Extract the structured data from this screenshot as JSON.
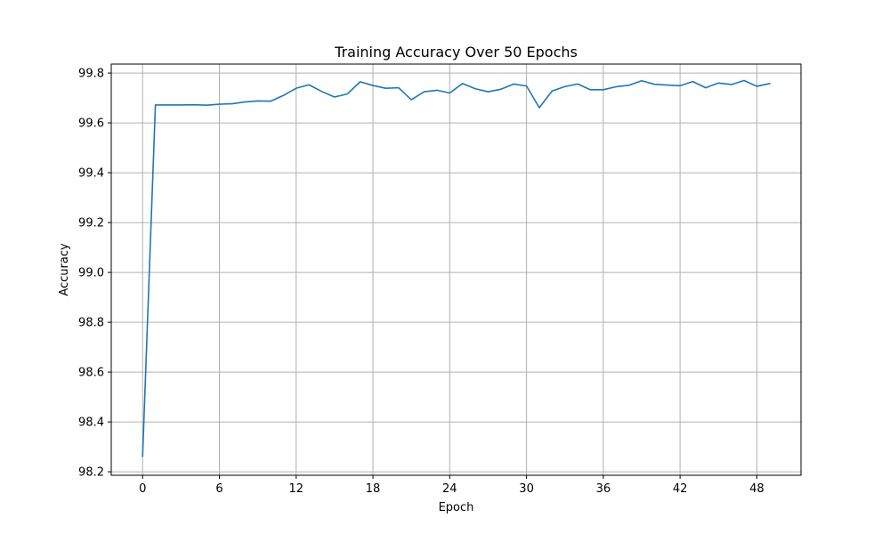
{
  "chart_data": {
    "type": "line",
    "title": "Training Accuracy Over 50 Epochs",
    "xlabel": "Epoch",
    "ylabel": "Accuracy",
    "xlim": [
      -2.45,
      51.45
    ],
    "ylim": [
      98.186,
      99.836
    ],
    "grid": true,
    "legend": "none",
    "x_ticks": [
      0,
      6,
      12,
      18,
      24,
      30,
      36,
      42,
      48
    ],
    "x_tick_labels": [
      "0",
      "6",
      "12",
      "18",
      "24",
      "30",
      "36",
      "42",
      "48"
    ],
    "y_ticks": [
      98.2,
      98.4,
      98.6,
      98.8,
      99.0,
      99.2,
      99.4,
      99.6,
      99.8
    ],
    "y_tick_labels": [
      "98.2",
      "98.4",
      "98.6",
      "98.8",
      "99.0",
      "99.2",
      "99.4",
      "99.6",
      "99.8"
    ],
    "series": [
      {
        "color": "#1f77b4",
        "x": [
          0,
          1,
          2,
          3,
          4,
          5,
          6,
          7,
          8,
          9,
          10,
          11,
          12,
          13,
          14,
          15,
          16,
          17,
          18,
          19,
          20,
          21,
          22,
          23,
          24,
          25,
          26,
          27,
          28,
          29,
          30,
          31,
          32,
          33,
          34,
          35,
          36,
          37,
          38,
          39,
          40,
          41,
          42,
          43,
          44,
          45,
          46,
          47,
          48,
          49
        ],
        "values": [
          98.262,
          99.672,
          99.672,
          99.672,
          99.673,
          99.671,
          99.675,
          99.677,
          99.684,
          99.688,
          99.687,
          99.71,
          99.739,
          99.753,
          99.726,
          99.704,
          99.716,
          99.765,
          99.75,
          99.739,
          99.741,
          99.693,
          99.725,
          99.731,
          99.72,
          99.758,
          99.737,
          99.725,
          99.735,
          99.756,
          99.748,
          99.661,
          99.728,
          99.746,
          99.756,
          99.733,
          99.733,
          99.745,
          99.751,
          99.769,
          99.755,
          99.752,
          99.749,
          99.766,
          99.741,
          99.76,
          99.754,
          99.77,
          99.747,
          99.758
        ]
      }
    ]
  }
}
